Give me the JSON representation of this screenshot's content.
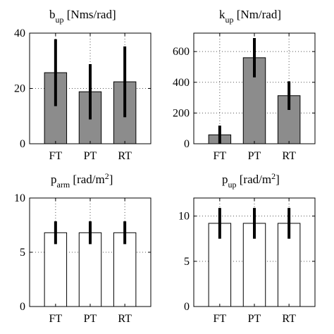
{
  "chart_data": [
    {
      "type": "bar",
      "title": {
        "main": "b",
        "sub": "up",
        "sup": "",
        "unit": " [Nms/rad]",
        "unit_sup": "",
        "unit_end": ""
      },
      "categories": [
        "FT",
        "PT",
        "RT"
      ],
      "values": [
        25.7,
        18.8,
        22.4
      ],
      "errors": [
        12.1,
        10.0,
        12.8
      ],
      "bar_color": "#8c8c8c",
      "ylim": [
        0,
        40
      ],
      "yticks": [
        0,
        20,
        40
      ],
      "grid": "dotted"
    },
    {
      "type": "bar",
      "title": {
        "main": "k",
        "sub": "up",
        "sup": "",
        "unit": " [Nm/rad]",
        "unit_sup": "",
        "unit_end": ""
      },
      "categories": [
        "FT",
        "PT",
        "RT"
      ],
      "values": [
        58,
        560,
        313
      ],
      "errors": [
        60,
        128,
        93
      ],
      "bar_color": "#8c8c8c",
      "ylim": [
        0,
        720
      ],
      "yticks": [
        0,
        200,
        400,
        600
      ],
      "grid": "dotted"
    },
    {
      "type": "bar",
      "title": {
        "main": "p",
        "sub": "arm",
        "sup": "",
        "unit": " [rad/m",
        "unit_sup": "2",
        "unit_end": "]"
      },
      "categories": [
        "FT",
        "PT",
        "RT"
      ],
      "values": [
        6.8,
        6.8,
        6.8
      ],
      "errors": [
        1.05,
        1.05,
        1.05
      ],
      "bar_color": "#ffffff",
      "ylim": [
        0,
        10
      ],
      "yticks": [
        0,
        5,
        10
      ],
      "grid": "dotted"
    },
    {
      "type": "bar",
      "title": {
        "main": "p",
        "sub": "up",
        "sup": "",
        "unit": " [rad/m",
        "unit_sup": "2",
        "unit_end": "]"
      },
      "categories": [
        "FT",
        "PT",
        "RT"
      ],
      "values": [
        9.2,
        9.2,
        9.2
      ],
      "errors": [
        1.7,
        1.7,
        1.7
      ],
      "bar_color": "#ffffff",
      "ylim": [
        0,
        12
      ],
      "yticks": [
        0,
        5,
        10
      ],
      "grid": "dotted"
    }
  ]
}
